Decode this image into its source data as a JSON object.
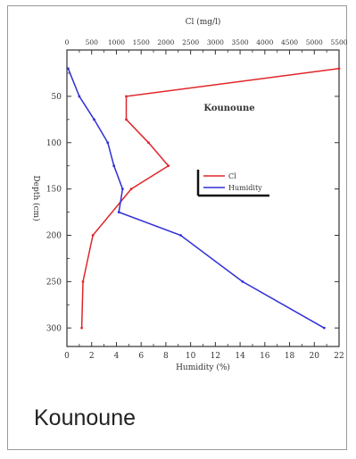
{
  "caption": "Kounoune",
  "chart_data": {
    "type": "line",
    "title": "Kounoune",
    "ylabel": "Depth (cm)",
    "ylim": [
      0,
      320
    ],
    "y_inverted": true,
    "yticks": [
      50,
      100,
      150,
      200,
      250,
      300
    ],
    "x_bottom": {
      "label": "Humidity (%)",
      "lim": [
        0,
        22
      ],
      "ticks": [
        0,
        2,
        4,
        6,
        8,
        10,
        12,
        14,
        16,
        18,
        20,
        22
      ]
    },
    "x_top": {
      "label": "Cl (mg/l)",
      "lim": [
        0,
        5500
      ],
      "ticks": [
        0,
        500,
        1000,
        1500,
        2000,
        2500,
        3000,
        3500,
        4000,
        4500,
        5000,
        5500
      ]
    },
    "legend_position": "center-right",
    "series": [
      {
        "name": "Cl",
        "axis": "top",
        "color": "#e0262a",
        "points": [
          {
            "value": 5500,
            "depth": 20
          },
          {
            "value": 1200,
            "depth": 50
          },
          {
            "value": 1200,
            "depth": 75
          },
          {
            "value": 1650,
            "depth": 100
          },
          {
            "value": 2050,
            "depth": 125
          },
          {
            "value": 1300,
            "depth": 150
          },
          {
            "value": 525,
            "depth": 200
          },
          {
            "value": 325,
            "depth": 250
          },
          {
            "value": 300,
            "depth": 300
          }
        ]
      },
      {
        "name": "Humidity",
        "axis": "bottom",
        "color": "#2f2fd6",
        "points": [
          {
            "value": 0.1,
            "depth": 20
          },
          {
            "value": 1.0,
            "depth": 50
          },
          {
            "value": 2.2,
            "depth": 75
          },
          {
            "value": 3.3,
            "depth": 100
          },
          {
            "value": 3.8,
            "depth": 125
          },
          {
            "value": 4.5,
            "depth": 150
          },
          {
            "value": 4.2,
            "depth": 175
          },
          {
            "value": 9.2,
            "depth": 200
          },
          {
            "value": 14.2,
            "depth": 250
          },
          {
            "value": 20.8,
            "depth": 300
          }
        ]
      }
    ]
  }
}
